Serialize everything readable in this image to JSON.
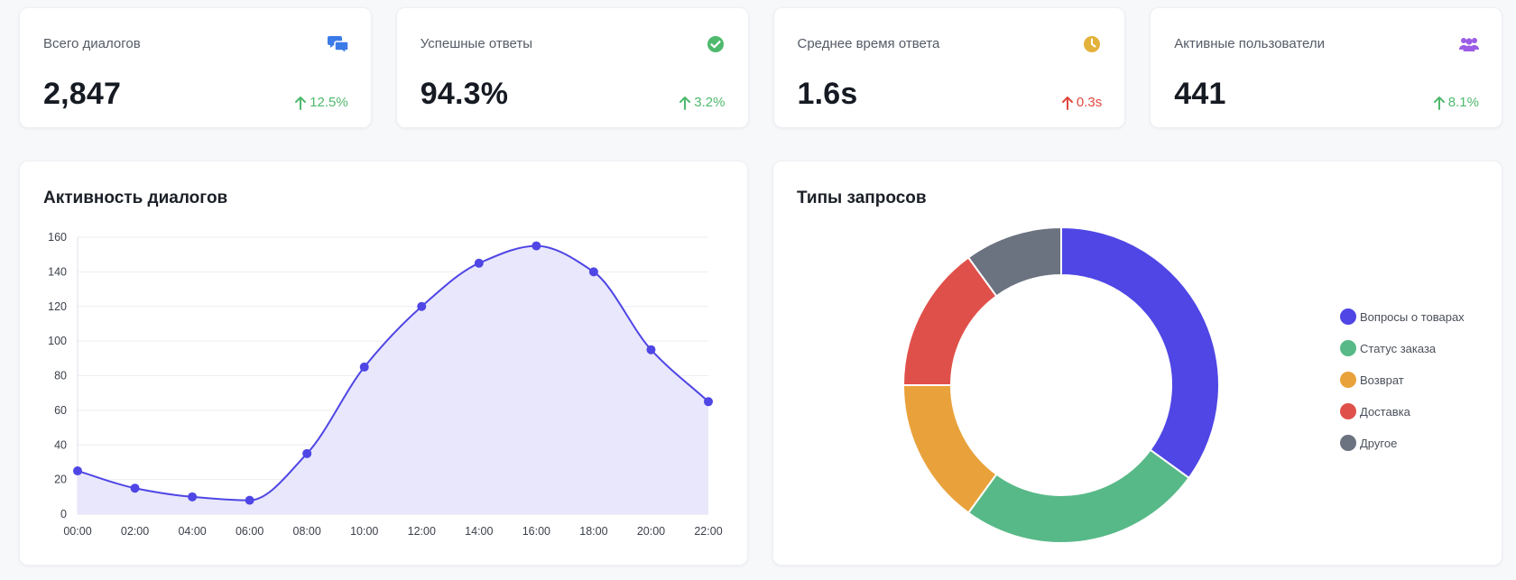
{
  "stats": [
    {
      "label": "Всего диалогов",
      "value": "2,847",
      "trend": "12.5%",
      "trend_direction": "up",
      "trend_color": "#4fb96d",
      "icon": "chat-bubbles-icon",
      "icon_color": "#3b7be8"
    },
    {
      "label": "Успешные ответы",
      "value": "94.3%",
      "trend": "3.2%",
      "trend_direction": "up",
      "trend_color": "#4fb96d",
      "icon": "check-circle-icon",
      "icon_color": "#4fb96d"
    },
    {
      "label": "Среднее время ответа",
      "value": "1.6s",
      "trend": "0.3s",
      "trend_direction": "up",
      "trend_color": "#e2473f",
      "icon": "clock-icon",
      "icon_color": "#e3b23c"
    },
    {
      "label": "Активные пользователи",
      "value": "441",
      "trend": "8.1%",
      "trend_direction": "up",
      "trend_color": "#4fb96d",
      "icon": "users-icon",
      "icon_color": "#9b5de5"
    }
  ],
  "activity_panel": {
    "title": "Активность диалогов"
  },
  "requests_panel": {
    "title": "Типы запросов"
  },
  "chart_data": [
    {
      "type": "line",
      "title": "Активность диалогов",
      "xlabel": "",
      "ylabel": "",
      "categories": [
        "00:00",
        "02:00",
        "04:00",
        "06:00",
        "08:00",
        "10:00",
        "12:00",
        "14:00",
        "16:00",
        "18:00",
        "20:00",
        "22:00"
      ],
      "series": [
        {
          "values": [
            25,
            15,
            10,
            8,
            35,
            85,
            120,
            145,
            155,
            140,
            95,
            65
          ]
        }
      ],
      "ylim": [
        0,
        160
      ],
      "yticks": [
        0,
        20,
        40,
        60,
        80,
        100,
        120,
        140,
        160
      ],
      "grid": true,
      "smooth": true,
      "filled": true,
      "line_color": "#4f46e5",
      "fill_color": "#e9e7fb"
    },
    {
      "type": "pie",
      "title": "Типы запросов",
      "donut": true,
      "legend_position": "right",
      "labels": [
        "Вопросы о товарах",
        "Статус заказа",
        "Возврат",
        "Доставка",
        "Другое"
      ],
      "values": [
        35,
        25,
        15,
        15,
        10
      ],
      "colors": [
        "#4f46e5",
        "#57b987",
        "#e9a23b",
        "#e0504a",
        "#6b7280"
      ]
    }
  ]
}
